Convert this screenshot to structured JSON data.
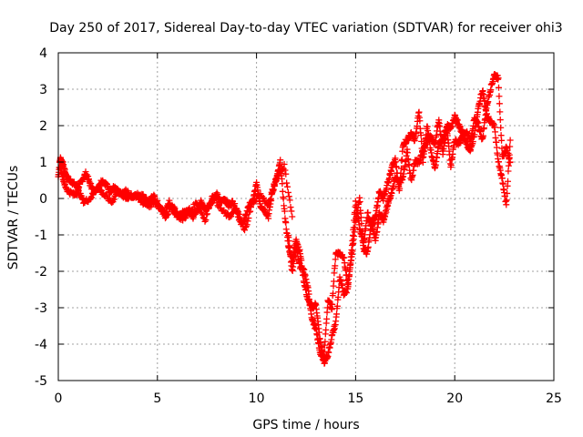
{
  "chart_data": {
    "type": "scatter",
    "title": "Day 250 of 2017, Sidereal Day-to-day VTEC variation (SDTVAR) for receiver ohi3",
    "xlabel": "GPS time / hours",
    "ylabel": "SDTVAR / TECUs",
    "xlim": [
      0,
      25
    ],
    "ylim": [
      -5,
      4
    ],
    "x_ticks": [
      0,
      5,
      10,
      15,
      20,
      25
    ],
    "y_ticks": [
      -5,
      -4,
      -3,
      -2,
      -1,
      0,
      1,
      2,
      3,
      4
    ],
    "grid": true,
    "marker": "+",
    "color": "#ff0000",
    "series": [
      {
        "x": [
          0.0,
          0.1,
          0.2,
          0.3,
          0.4,
          0.6,
          0.8,
          1.0,
          1.2,
          1.4,
          1.6,
          1.8,
          2.0,
          2.2,
          2.4,
          2.6,
          2.8,
          3.0,
          3.2,
          3.4,
          3.6,
          3.8,
          4.0,
          4.2,
          4.4,
          4.6,
          4.8,
          5.0,
          5.2,
          5.4,
          5.6,
          5.8,
          6.0,
          6.2,
          6.4,
          6.6,
          6.8,
          7.0,
          7.2,
          7.4,
          7.6,
          7.8,
          8.0,
          8.2,
          8.4,
          8.6,
          8.8,
          9.0,
          9.2,
          9.4,
          9.6,
          9.8,
          10.0,
          10.2,
          10.4,
          10.6,
          10.8,
          11.0,
          11.2,
          11.4,
          11.6,
          11.8,
          12.0,
          12.2,
          12.4,
          12.6,
          12.8,
          13.0,
          13.2,
          13.4,
          13.6,
          13.8,
          14.0,
          14.2,
          14.4,
          14.6,
          14.8,
          15.0,
          15.2,
          15.4,
          15.6,
          15.8,
          16.0,
          16.2,
          16.4,
          16.6,
          16.8,
          17.0,
          17.2,
          17.4,
          17.6,
          17.8,
          18.0,
          18.2,
          18.4,
          18.6,
          18.8,
          19.0,
          19.2,
          19.4,
          19.6,
          19.8,
          20.0,
          20.2,
          20.4,
          20.6,
          20.8,
          21.0,
          21.2,
          21.4,
          21.6,
          21.8,
          22.0,
          22.2,
          22.4,
          22.6,
          22.8
        ],
        "y": [
          0.6,
          1.1,
          1.0,
          0.8,
          0.6,
          0.5,
          0.4,
          0.3,
          0.5,
          0.7,
          0.4,
          0.2,
          0.3,
          0.5,
          0.4,
          0.2,
          0.3,
          0.2,
          0.1,
          0.2,
          0.1,
          0.05,
          0.1,
          0.1,
          0.0,
          -0.1,
          0.1,
          -0.2,
          -0.3,
          -0.4,
          -0.1,
          -0.3,
          -0.5,
          -0.4,
          -0.4,
          -0.3,
          -0.5,
          -0.3,
          -0.1,
          -0.3,
          -0.2,
          0.0,
          0.1,
          -0.1,
          0.0,
          -0.2,
          -0.1,
          -0.3,
          -0.7,
          -0.6,
          -0.2,
          -0.1,
          0.4,
          -0.2,
          -0.3,
          -0.5,
          0.2,
          0.5,
          1.0,
          -0.3,
          -1.3,
          -1.7,
          -1.1,
          -1.5,
          -2.3,
          -2.8,
          -3.0,
          -2.9,
          -3.9,
          -4.4,
          -2.8,
          -3.0,
          -1.5,
          -1.5,
          -1.6,
          -2.4,
          -1.6,
          -0.6,
          0.0,
          -1.4,
          -1.5,
          -0.6,
          -1.2,
          -0.4,
          -0.6,
          -0.2,
          0.1,
          0.6,
          0.4,
          0.6,
          1.3,
          0.5,
          1.0,
          1.0,
          1.3,
          1.6,
          1.7,
          1.5,
          2.2,
          1.2,
          1.9,
          0.9,
          1.6,
          1.5,
          1.7,
          1.8,
          1.6,
          2.2,
          2.0,
          1.6,
          2.5,
          3.0,
          3.4,
          3.3,
          1.1,
          1.4,
          1.0
        ],
        "x2": [
          0.1,
          0.3,
          0.5,
          0.8,
          1.0,
          1.3,
          1.6,
          2.0,
          2.3,
          2.7,
          3.0,
          3.4,
          3.8,
          4.2,
          4.6,
          5.0,
          5.4,
          5.8,
          6.2,
          6.6,
          7.0,
          7.4,
          7.8,
          8.2,
          8.6,
          9.0,
          9.4,
          9.8,
          10.2,
          10.6,
          11.0,
          11.4,
          11.8
        ],
        "y2": [
          0.9,
          0.4,
          0.2,
          0.1,
          0.2,
          -0.1,
          0.0,
          0.3,
          0.1,
          -0.1,
          0.2,
          0.0,
          0.1,
          -0.1,
          -0.2,
          -0.1,
          -0.5,
          -0.2,
          -0.6,
          -0.4,
          -0.1,
          -0.6,
          0.1,
          -0.3,
          -0.5,
          -0.3,
          -0.9,
          -0.1,
          0.1,
          -0.2,
          0.6,
          0.9,
          -0.5
        ],
        "x3": [
          11.6,
          11.8,
          12.0,
          12.2,
          12.4,
          12.6,
          12.8,
          13.0,
          13.2,
          13.4,
          13.6,
          13.8,
          14.0,
          14.2,
          14.4,
          14.6,
          14.8,
          15.0,
          15.2,
          15.4,
          15.6,
          15.8,
          16.0,
          16.2,
          16.4,
          16.6,
          16.8,
          17.0,
          17.2,
          17.4,
          17.6,
          17.8,
          18.0,
          18.2,
          18.4,
          18.6,
          18.8,
          19.0,
          19.2,
          19.4,
          19.6,
          19.8,
          20.0,
          20.2,
          20.4,
          20.6,
          20.8,
          21.0,
          21.2,
          21.4,
          21.6,
          21.8,
          22.0,
          22.2,
          22.4,
          22.6,
          22.8
        ],
        "y3": [
          -1.0,
          -2.0,
          -1.3,
          -1.9,
          -2.0,
          -2.5,
          -3.3,
          -3.6,
          -4.2,
          -4.5,
          -4.3,
          -3.8,
          -3.4,
          -2.2,
          -2.6,
          -2.5,
          -1.4,
          -0.1,
          -0.8,
          -1.2,
          -0.4,
          -0.8,
          -0.5,
          0.2,
          0.0,
          0.4,
          0.8,
          1.1,
          0.2,
          1.5,
          1.6,
          1.8,
          1.6,
          2.4,
          1.0,
          2.0,
          1.3,
          0.8,
          1.5,
          1.6,
          2.0,
          1.9,
          2.3,
          2.0,
          1.8,
          1.5,
          1.3,
          1.8,
          2.5,
          3.0,
          2.3,
          2.1,
          2.0,
          1.0,
          0.5,
          -0.2,
          1.6
        ]
      }
    ]
  }
}
